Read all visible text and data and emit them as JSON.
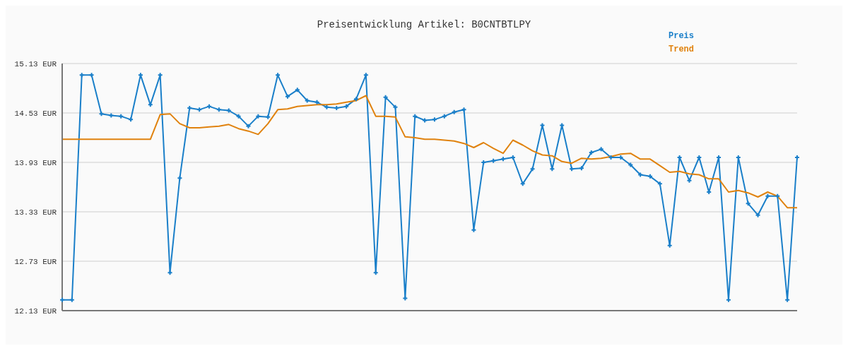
{
  "chart_data": {
    "type": "line",
    "title": "Preisentwicklung Artikel: B0CNTBTLPY",
    "categories": [
      null,
      null,
      null,
      null,
      null,
      null,
      null,
      null,
      null,
      null,
      null,
      null,
      null,
      null,
      null,
      null,
      null,
      null,
      null,
      null,
      null,
      null,
      null,
      null,
      null,
      null,
      null,
      null,
      null,
      null,
      null,
      null,
      null,
      null,
      null,
      null,
      null,
      null,
      null,
      null,
      null,
      null,
      null,
      null,
      null,
      null,
      null,
      null,
      null,
      null,
      null,
      null,
      null,
      null,
      null,
      null,
      null,
      null,
      null,
      null,
      null,
      null,
      null,
      null,
      null,
      null,
      null,
      null,
      null,
      null,
      null,
      null,
      null,
      null,
      null,
      null
    ],
    "series": [
      {
        "name": "Preis",
        "color": "#1a7fc9",
        "marker": "cross",
        "values": [
          12.26,
          12.26,
          14.99,
          14.99,
          14.52,
          14.5,
          14.49,
          14.45,
          14.99,
          14.63,
          14.99,
          12.59,
          13.74,
          14.59,
          14.57,
          14.61,
          14.57,
          14.56,
          14.49,
          14.37,
          14.49,
          14.48,
          14.99,
          14.73,
          14.81,
          14.68,
          14.66,
          14.6,
          14.59,
          14.61,
          14.7,
          14.99,
          12.59,
          14.72,
          14.6,
          12.28,
          14.49,
          14.44,
          14.45,
          14.49,
          14.54,
          14.57,
          13.11,
          13.93,
          13.95,
          13.97,
          13.99,
          13.67,
          13.85,
          14.38,
          13.85,
          14.38,
          13.85,
          13.86,
          14.05,
          14.09,
          13.99,
          13.99,
          13.9,
          13.78,
          13.76,
          13.67,
          12.92,
          13.99,
          13.71,
          13.99,
          13.57,
          13.99,
          12.26,
          13.99,
          13.43,
          13.29,
          13.52,
          13.52,
          12.26,
          13.99
        ]
      },
      {
        "name": "Trend",
        "color": "#e0820e",
        "marker": "none",
        "values": [
          14.21,
          14.21,
          14.21,
          14.21,
          14.21,
          14.21,
          14.21,
          14.21,
          14.21,
          14.21,
          14.51,
          14.52,
          14.4,
          14.35,
          14.35,
          14.36,
          14.37,
          14.39,
          14.34,
          14.31,
          14.27,
          14.4,
          14.57,
          14.58,
          14.61,
          14.62,
          14.63,
          14.63,
          14.64,
          14.66,
          14.68,
          14.74,
          14.49,
          14.49,
          14.48,
          14.24,
          14.23,
          14.21,
          14.21,
          14.2,
          14.19,
          14.16,
          14.11,
          14.17,
          14.1,
          14.04,
          14.2,
          14.14,
          14.07,
          14.02,
          14.01,
          13.94,
          13.92,
          13.98,
          13.97,
          13.98,
          14.0,
          14.03,
          14.04,
          13.97,
          13.97,
          13.89,
          13.81,
          13.82,
          13.79,
          13.78,
          13.73,
          13.73,
          13.57,
          13.59,
          13.56,
          13.51,
          13.57,
          13.52,
          13.38,
          13.38
        ]
      }
    ],
    "ylim": [
      12.13,
      15.13
    ],
    "yticks": [
      {
        "value": 12.13,
        "label": "12.13 EUR"
      },
      {
        "value": 12.73,
        "label": "12.73 EUR"
      },
      {
        "value": 13.33,
        "label": "13.33 EUR"
      },
      {
        "value": 13.93,
        "label": "13.93 EUR"
      },
      {
        "value": 14.53,
        "label": "14.53 EUR"
      },
      {
        "value": 15.13,
        "label": "15.13 EUR"
      }
    ],
    "grid": "y",
    "legend": "top right",
    "tick_labels": "y",
    "line_style": "solid"
  }
}
